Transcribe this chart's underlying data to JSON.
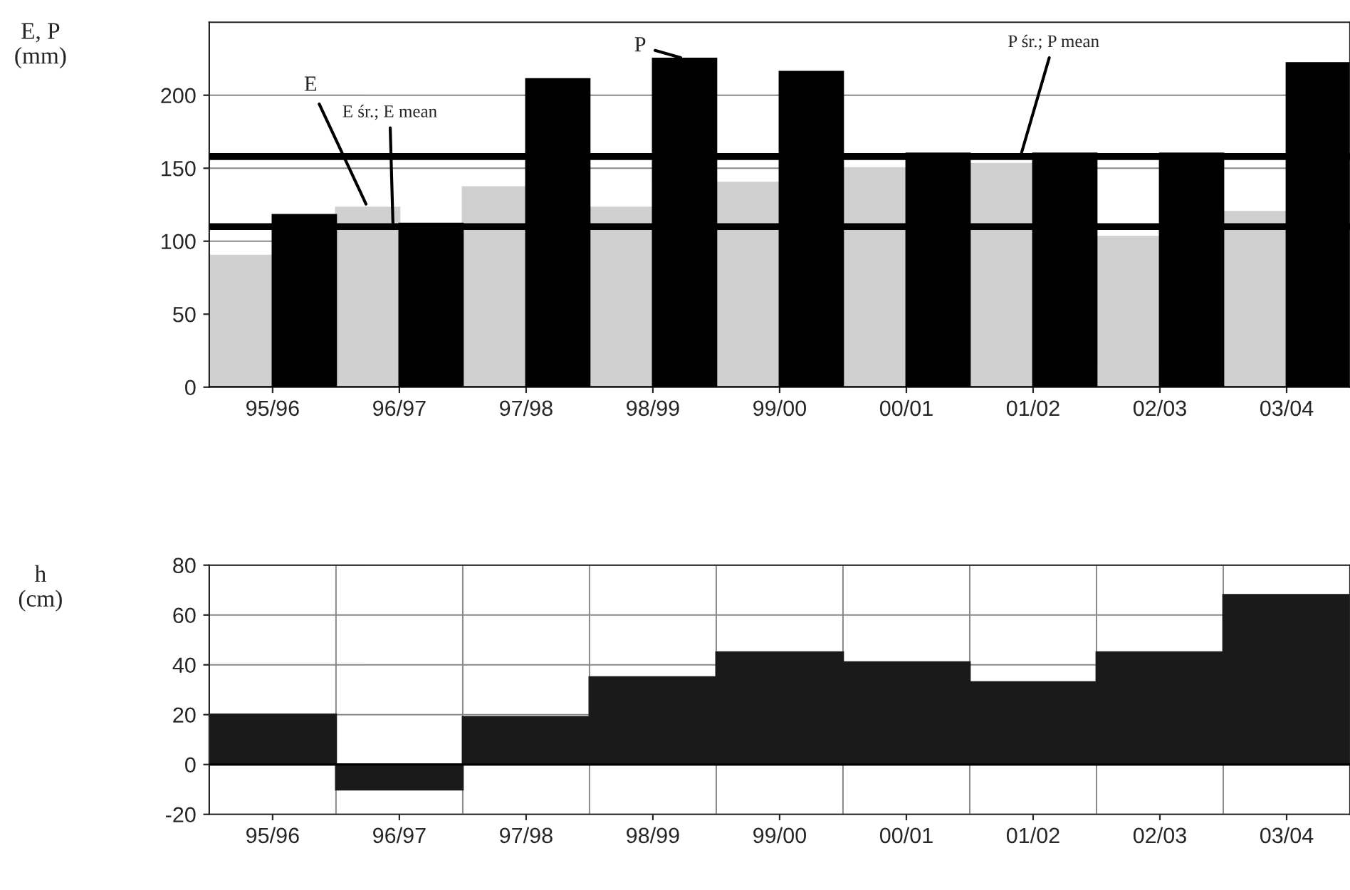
{
  "chart_data": [
    {
      "type": "bar",
      "ylabel": "E, P\n(mm)",
      "categories": [
        "95/96",
        "96/97",
        "97/98",
        "98/99",
        "99/00",
        "00/01",
        "01/02",
        "02/03",
        "03/04"
      ],
      "series": [
        {
          "name": "E",
          "color": "#d0d0d0",
          "values": [
            90,
            123,
            137,
            123,
            140,
            150,
            153,
            103,
            120
          ]
        },
        {
          "name": "P",
          "color": "#000000",
          "values": [
            118,
            112,
            211,
            225,
            216,
            160,
            160,
            160,
            222
          ]
        }
      ],
      "ylim": [
        0,
        250
      ],
      "yticks": [
        0,
        50,
        100,
        150,
        200
      ],
      "grid": "y",
      "ref_lines": [
        {
          "axis": "y",
          "value": 158,
          "label": "P śr.; P mean",
          "color": "#000000"
        },
        {
          "axis": "y",
          "value": 110,
          "label": "E śr.; E mean",
          "color": "#000000"
        }
      ]
    },
    {
      "type": "bar",
      "ylabel": "h\n(cm)",
      "categories": [
        "95/96",
        "96/97",
        "97/98",
        "98/99",
        "99/00",
        "00/01",
        "01/02",
        "02/03",
        "03/04"
      ],
      "series": [
        {
          "color": "#1a1a1a",
          "values": [
            20,
            -10,
            19,
            35,
            45,
            41,
            33,
            45,
            68
          ]
        }
      ],
      "ylim": [
        -20,
        80
      ],
      "yticks": [
        -20,
        0,
        20,
        40,
        60,
        80
      ],
      "grid": true,
      "legend": false
    }
  ]
}
